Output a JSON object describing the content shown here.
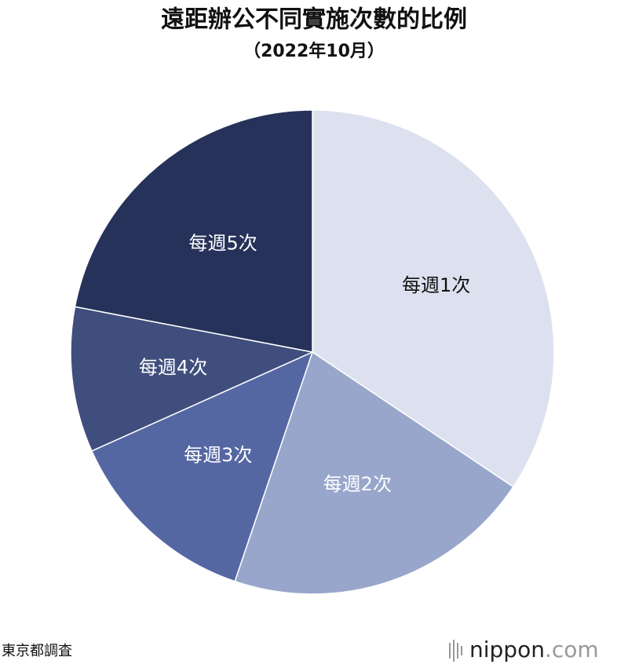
{
  "chart_data": {
    "type": "pie",
    "title": "遠距辦公不同實施次數的比例",
    "subtitle": "（2022年10月）",
    "categories": [
      "每週1次",
      "每週2次",
      "每週3次",
      "每週4次",
      "每週5次"
    ],
    "values": [
      34.4,
      20.8,
      13.1,
      9.7,
      22
    ],
    "colors": [
      "#dde1ef",
      "#99a6cb",
      "#5567a3",
      "#404e7d",
      "#26325a"
    ],
    "label_colors": [
      "#111111",
      "#ffffff",
      "#ffffff",
      "#ffffff",
      "#ffffff"
    ],
    "source": "東京都調査"
  },
  "logo": {
    "name": "nippon",
    "domain": ".com"
  }
}
